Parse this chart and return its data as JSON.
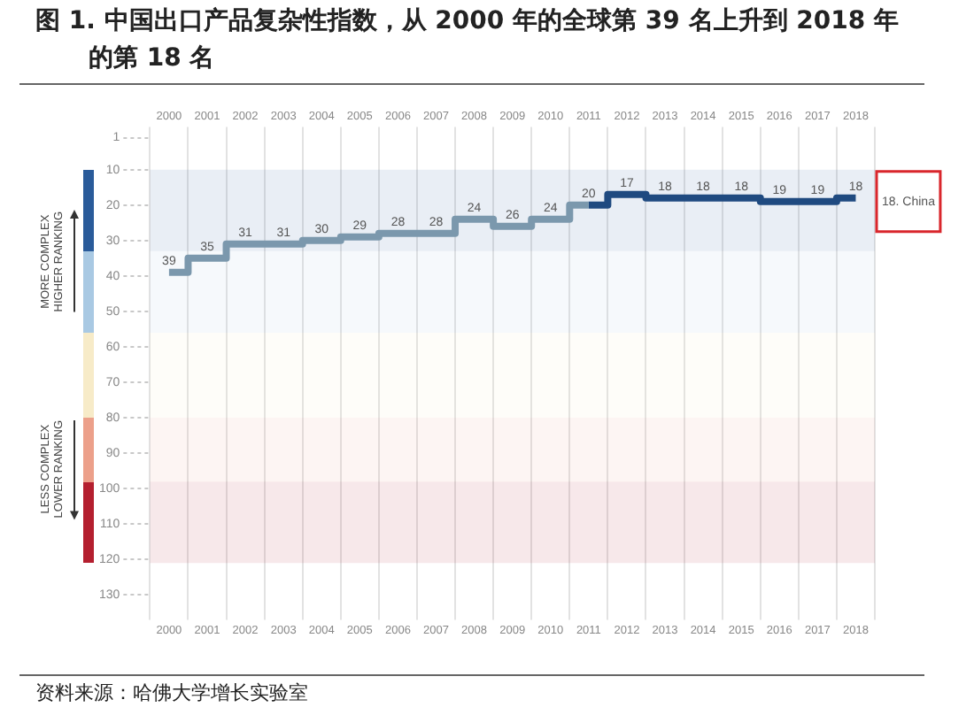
{
  "chart_data": {
    "type": "step",
    "title": "图 1. 中国出口产品复杂性指数，从 2000 年的全球第 39 名上升到 2018 年的第 18 名",
    "categories": [
      "2000",
      "2001",
      "2002",
      "2003",
      "2004",
      "2005",
      "2006",
      "2007",
      "2008",
      "2009",
      "2010",
      "2011",
      "2012",
      "2013",
      "2014",
      "2015",
      "2016",
      "2017",
      "2018"
    ],
    "series": [
      {
        "color": "#7b98ad",
        "values": [
          39,
          35,
          31,
          31,
          30,
          29,
          28,
          28,
          24,
          26,
          24,
          20,
          null,
          null,
          null,
          null,
          null,
          null,
          null
        ],
        "value_labels": [
          "39",
          "35",
          "31",
          "31",
          "30",
          "29",
          "28",
          "28",
          "24",
          "26",
          "24",
          "20",
          null,
          null,
          null,
          null,
          null,
          null,
          null
        ]
      },
      {
        "color": "#1f4a80",
        "values": [
          null,
          null,
          null,
          null,
          null,
          null,
          null,
          null,
          null,
          null,
          null,
          20,
          17,
          18,
          18,
          18,
          19,
          19,
          18
        ],
        "value_labels": [
          null,
          null,
          null,
          null,
          null,
          null,
          null,
          null,
          null,
          null,
          null,
          null,
          "17",
          "18",
          "18",
          "18",
          "19",
          "19",
          "18"
        ]
      }
    ],
    "ylim": [
      134,
      1
    ],
    "yticks": [
      1,
      10,
      20,
      30,
      40,
      50,
      60,
      70,
      80,
      90,
      100,
      110,
      120,
      130
    ],
    "grid": "x",
    "bands": [
      {
        "axis": "y",
        "from": 10,
        "to": 33,
        "color": "#2a5b9a"
      },
      {
        "axis": "y",
        "from": 33,
        "to": 56,
        "color": "#a9c9e3"
      },
      {
        "axis": "y",
        "from": 56,
        "to": 80,
        "color": "#f7ebc8"
      },
      {
        "axis": "y",
        "from": 80,
        "to": 98,
        "color": "#eca08a"
      },
      {
        "axis": "y",
        "from": 98,
        "to": 121,
        "color": "#b41f2f"
      }
    ],
    "annotations": [
      "18. China",
      "MORE COMPLEX HIGHER RANKING",
      "LESS COMPLEX LOWER RANKING",
      "资料来源：哈佛大学增长实验室"
    ]
  }
}
